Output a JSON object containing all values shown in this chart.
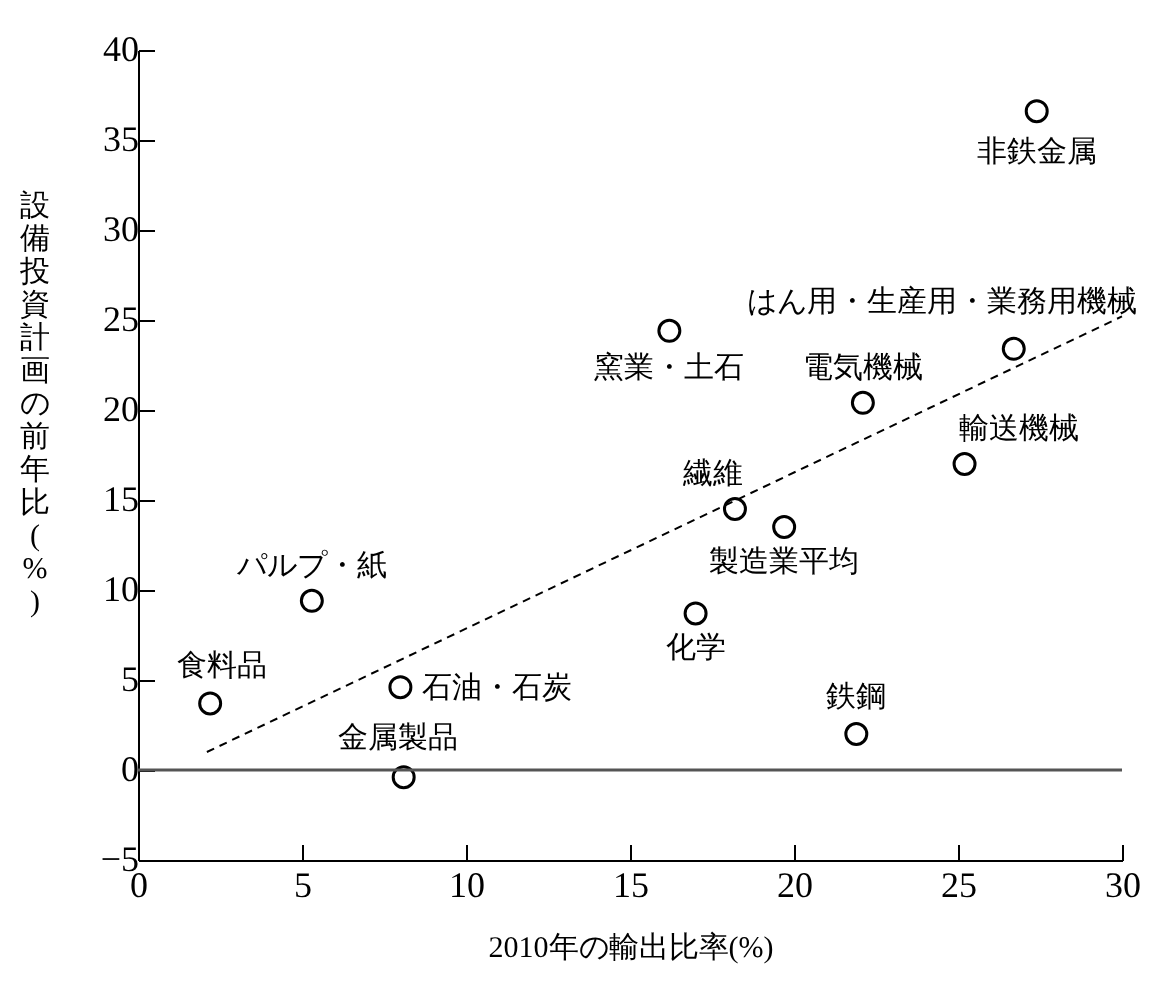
{
  "chart_data": {
    "type": "scatter",
    "xlabel": "2010年の輸出比率(%)",
    "ylabel": "設備投資計画の前年比(%)",
    "xlim": [
      0,
      30
    ],
    "xticks": [
      0,
      5,
      10,
      15,
      20,
      25,
      30
    ],
    "ylim": [
      -5,
      40
    ],
    "yticks": [
      -5,
      0,
      5,
      10,
      15,
      20,
      25,
      30,
      35,
      40
    ],
    "grid": false,
    "marker": "circle",
    "series": [
      {
        "color": "#000000",
        "x": [
          27.4,
          26.7,
          16.2,
          22.1,
          25.2,
          18.2,
          19.7,
          5.3,
          17.0,
          2.2,
          8.0,
          21.9,
          8.1
        ],
        "values": [
          36.6,
          23.4,
          24.4,
          20.4,
          17.0,
          14.5,
          13.5,
          9.4,
          8.7,
          3.7,
          4.6,
          2.0,
          -0.4
        ]
      },
      {
        "type": "line",
        "color": "#000000",
        "line_style": "dashed",
        "marker": "none",
        "x": [
          2.1,
          30
        ],
        "values": [
          1.0,
          25.2
        ]
      }
    ],
    "ref_lines": [
      {
        "axis": "y",
        "value": 0,
        "color": "#555555"
      }
    ],
    "annotations": [
      {
        "text": "非鉄金属",
        "x": 27.4,
        "y": 36.6
      },
      {
        "text": "はん用・生産用・業務用機械",
        "x": 26.7,
        "y": 23.4
      },
      {
        "text": "窯業・土石",
        "x": 16.2,
        "y": 24.4
      },
      {
        "text": "電気機械",
        "x": 22.1,
        "y": 20.4
      },
      {
        "text": "輸送機械",
        "x": 25.2,
        "y": 17.0
      },
      {
        "text": "繊維",
        "x": 18.2,
        "y": 14.5
      },
      {
        "text": "製造業平均",
        "x": 19.7,
        "y": 13.5
      },
      {
        "text": "パルプ・紙",
        "x": 5.3,
        "y": 9.4
      },
      {
        "text": "化学",
        "x": 17.0,
        "y": 8.7
      },
      {
        "text": "食料品",
        "x": 2.2,
        "y": 3.7
      },
      {
        "text": "石油・石炭",
        "x": 8.0,
        "y": 4.6
      },
      {
        "text": "鉄鋼",
        "x": 21.9,
        "y": 2.0
      },
      {
        "text": "金属製品",
        "x": 8.1,
        "y": -0.4
      }
    ]
  }
}
